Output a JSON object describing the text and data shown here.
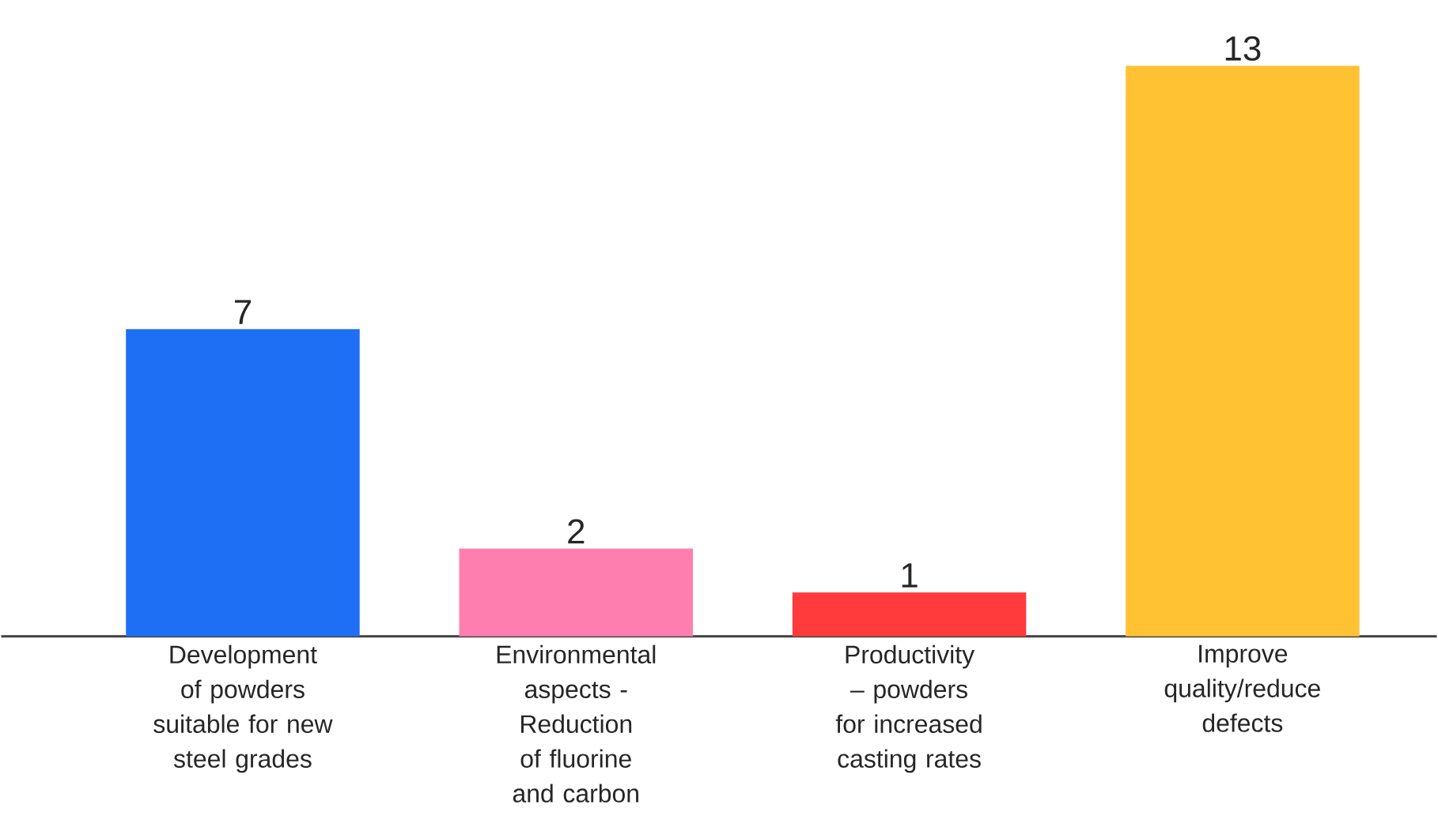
{
  "chart_data": {
    "type": "bar",
    "categories": [
      "Development of powders suitable for new steel grades",
      "Environmental aspects - Reduction of fluorine and carbon",
      "Productivity – powders for increased casting rates",
      "Improve quality/reduce defects"
    ],
    "values": [
      7,
      2,
      1,
      13
    ],
    "colors": [
      "#1f6ff5",
      "#ff7eb0",
      "#ff3b3b",
      "#ffc233"
    ],
    "data_labels": true
  }
}
